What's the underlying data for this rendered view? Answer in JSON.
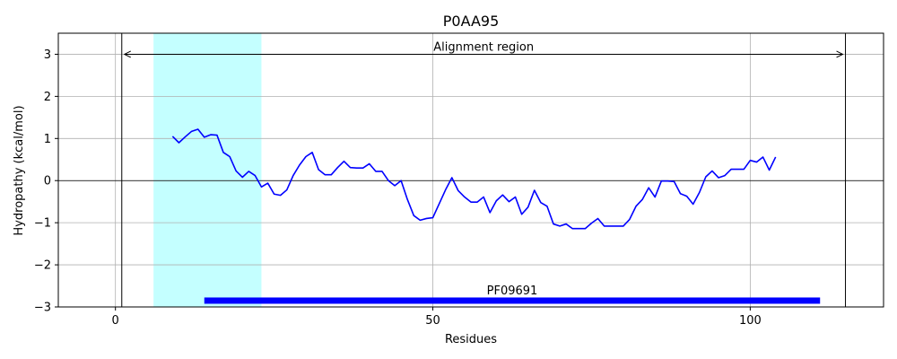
{
  "chart_data": {
    "type": "line",
    "title": "P0AA95",
    "xlabel": "Residues",
    "ylabel": "Hydropathy (kcal/mol)",
    "xlim": [
      -9,
      121
    ],
    "ylim": [
      -3,
      3.5
    ],
    "x_ticks": [
      0,
      50,
      100
    ],
    "x_tick_labels": [
      "0",
      "50",
      "100"
    ],
    "y_ticks": [
      -3,
      -2,
      -1,
      0,
      1,
      2,
      3
    ],
    "y_tick_labels": [
      "−3",
      "−2",
      "−1",
      "0",
      "1",
      "2",
      "3"
    ],
    "grid": true,
    "colors": {
      "line": "#0000ff",
      "highlight": "#c4ffff",
      "domain_bar": "#0000ff",
      "grid": "#b0b0b0",
      "axis": "#000000"
    },
    "highlight_region": {
      "x0": 6,
      "x1": 23
    },
    "alignment_region": {
      "label": "Alignment region",
      "x0": 1,
      "x1": 115,
      "y": 3,
      "arrow_y": 3
    },
    "domain": {
      "label": "PF09691",
      "x0": 14,
      "x1": 111,
      "y": -2.85
    },
    "zero_line": 0,
    "series": [
      {
        "x": [
          9,
          10,
          11,
          12,
          13,
          14,
          15,
          16,
          17,
          18,
          19,
          20,
          21,
          22,
          23,
          24,
          25,
          26,
          27,
          28,
          29,
          30,
          31,
          32,
          33,
          34,
          35,
          36,
          37,
          38,
          39,
          40,
          41,
          42,
          43,
          44,
          45,
          46,
          47,
          48,
          49,
          50,
          51,
          52,
          53,
          54,
          55,
          56,
          57,
          58,
          59,
          60,
          61,
          62,
          63,
          64,
          65,
          66,
          67,
          68,
          69,
          70,
          71,
          72,
          73,
          74,
          75,
          76,
          77,
          78,
          79,
          80,
          81,
          82,
          83,
          84,
          85,
          86,
          87,
          88,
          89,
          90,
          91,
          92,
          93,
          94,
          95,
          96,
          97,
          98,
          99,
          100,
          101,
          102,
          103,
          104
        ],
        "values": [
          1.05,
          0.9,
          1.04,
          1.17,
          1.22,
          1.03,
          1.09,
          1.08,
          0.67,
          0.57,
          0.23,
          0.08,
          0.22,
          0.12,
          -0.15,
          -0.06,
          -0.32,
          -0.35,
          -0.22,
          0.12,
          0.37,
          0.57,
          0.67,
          0.26,
          0.14,
          0.14,
          0.31,
          0.46,
          0.31,
          0.3,
          0.3,
          0.4,
          0.22,
          0.22,
          0.0,
          -0.12,
          0.0,
          -0.45,
          -0.83,
          -0.94,
          -0.9,
          -0.88,
          -0.55,
          -0.22,
          0.07,
          -0.24,
          -0.39,
          -0.51,
          -0.51,
          -0.39,
          -0.76,
          -0.48,
          -0.34,
          -0.5,
          -0.39,
          -0.8,
          -0.63,
          -0.23,
          -0.52,
          -0.61,
          -1.03,
          -1.08,
          -1.03,
          -1.14,
          -1.14,
          -1.14,
          -1.01,
          -0.9,
          -1.08,
          -1.08,
          -1.08,
          -1.08,
          -0.92,
          -0.61,
          -0.45,
          -0.17,
          -0.39,
          -0.01,
          -0.01,
          -0.02,
          -0.31,
          -0.37,
          -0.56,
          -0.28,
          0.09,
          0.23,
          0.07,
          0.12,
          0.27,
          0.27,
          0.27,
          0.48,
          0.44,
          0.56,
          0.25,
          0.56
        ]
      }
    ]
  }
}
